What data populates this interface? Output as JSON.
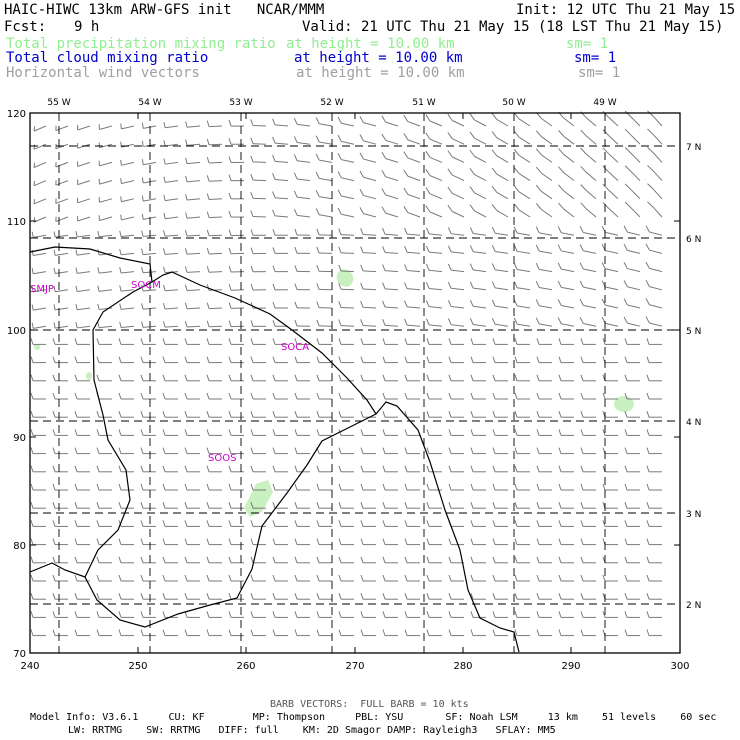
{
  "header": {
    "title": "HAIC-HIWC 13km ARW-GFS init   NCAR/MMM",
    "init": "Init: 12 UTC Thu 21 May 15",
    "fcst_label": "Fcst:",
    "fcst_value": "9 h",
    "valid": "Valid: 21 UTC Thu 21 May 15 (18 LST Thu 21 May 15)"
  },
  "fields": [
    {
      "name": "Total precipitation mixing ratio",
      "level": "at height = 10.00 km",
      "sm": "sm= 1",
      "color": "#90ee90"
    },
    {
      "name": "Total cloud mixing ratio",
      "level": "at height = 10.00 km",
      "sm": "sm= 1",
      "color": "#0000cd"
    },
    {
      "name": "Horizontal wind vectors",
      "level": "at height = 10.00 km",
      "sm": "sm= 1",
      "color": "#a0a0a0"
    }
  ],
  "map": {
    "x_ticks": [
      "240",
      "250",
      "260",
      "270",
      "280",
      "290",
      "300"
    ],
    "y_ticks": [
      "70",
      "80",
      "90",
      "100",
      "110",
      "120"
    ],
    "lon_labels": [
      "55 W",
      "54 W",
      "53 W",
      "52 W",
      "51 W",
      "50 W",
      "49 W"
    ],
    "lat_labels": [
      "7 N",
      "6 N",
      "5 N",
      "4 N",
      "3 N",
      "2 N"
    ],
    "stations": [
      "SMJP",
      "SOCM",
      "SOCA",
      "SOOS"
    ],
    "station_color": "#cc00cc",
    "precip_color": "#c8f0c0",
    "barb_color": "#7a7a7a"
  },
  "footer": {
    "barb_note": "BARB VECTORS:  FULL BARB = 10 kts",
    "model_line1": "Model Info: V3.6.1     CU: KF        MP: Thompson     PBL: YSU       SF: Noah LSM     13 km    51 levels    60 sec",
    "model_line2": "LW: RRTMG    SW: RRTMG   DIFF: full    KM: 2D Smagor DAMP: Rayleigh3   SFLAY: MM5"
  }
}
